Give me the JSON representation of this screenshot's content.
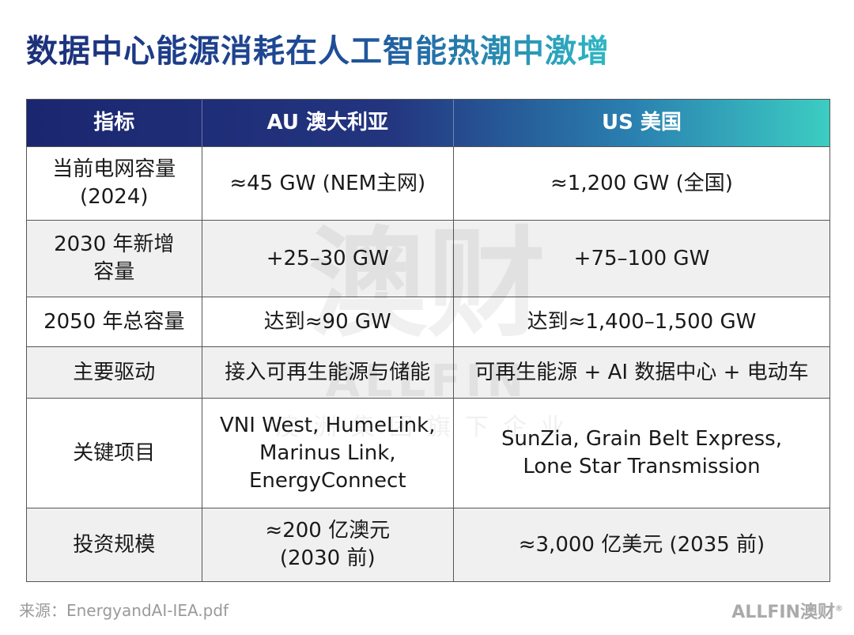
{
  "header": {
    "title": "数据中心能源消耗在人工智能热潮中激增"
  },
  "table": {
    "columns": [
      "指标",
      "AU 澳大利亚",
      "US 美国"
    ],
    "rows": [
      [
        [
          "当前电网容量",
          "(2024)"
        ],
        [
          "≈45 GW (NEM主网)"
        ],
        [
          "≈1,200 GW (全国)"
        ]
      ],
      [
        [
          "2030 年新增",
          "容量"
        ],
        [
          "+25–30 GW"
        ],
        [
          "+75–100 GW"
        ]
      ],
      [
        [
          "2050 年总容量"
        ],
        [
          "达到≈90 GW"
        ],
        [
          "达到≈1,400–1,500 GW"
        ]
      ],
      [
        [
          "主要驱动"
        ],
        [
          "接入可再生能源与储能"
        ],
        [
          "可再生能源 + AI 数据中心 + 电动车"
        ]
      ],
      [
        [
          "关键项目"
        ],
        [
          "VNI West, HumeLink,",
          "Marinus Link,",
          "EnergyConnect"
        ],
        [
          "SunZia, Grain Belt Express,",
          "Lone Star Transmission"
        ]
      ],
      [
        [
          "投资规模"
        ],
        [
          "≈200 亿澳元",
          "(2030 前)"
        ],
        [
          "≈3,000 亿美元 (2035 前)"
        ]
      ]
    ]
  },
  "watermark": {
    "logo": "澳财",
    "brand": "ALLFIN",
    "tagline": "澳洲集团旗下企业"
  },
  "footer": {
    "source": "来源：EnergyandAI-IEA.pdf",
    "logo_en": "ALLFIN",
    "logo_cn": "澳财",
    "mark": "®"
  }
}
